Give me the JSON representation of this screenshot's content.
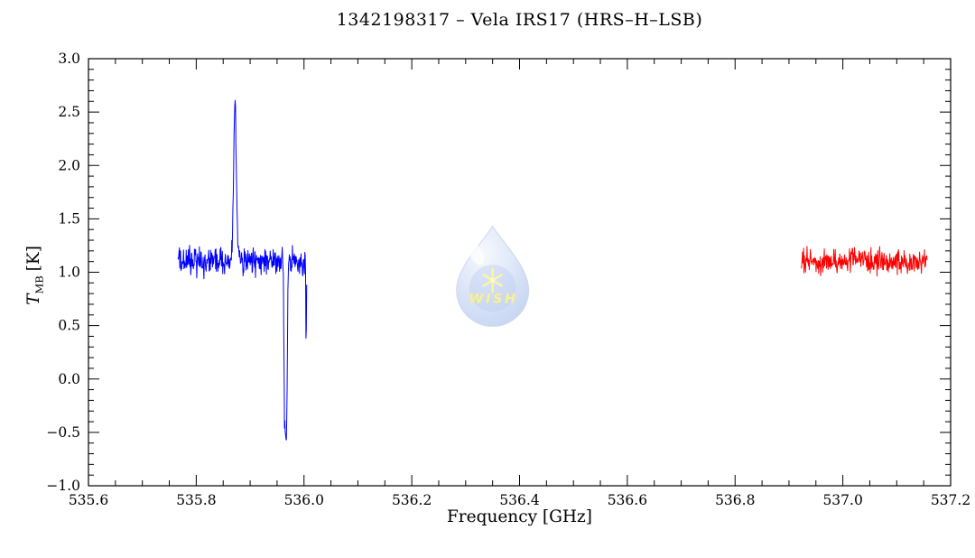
{
  "chart_data": {
    "type": "line",
    "title": "1342198317 – Vela IRS17 (HRS–H–LSB)",
    "xlabel": "Frequency [GHz]",
    "ylabel": "T_MB [K]",
    "ylabel_parts": {
      "symbol": "T",
      "subscript": "MB",
      "units": "[K]"
    },
    "xlim": [
      535.6,
      537.2
    ],
    "ylim": [
      -1.0,
      3.0
    ],
    "x_tick_values": [
      535.6,
      535.8,
      536.0,
      536.2,
      536.4,
      536.6,
      536.8,
      537.0,
      537.2
    ],
    "x_tick_labels": [
      "535.6",
      "535.8",
      "536.0",
      "536.2",
      "536.4",
      "536.6",
      "536.8",
      "537.0",
      "537.2"
    ],
    "y_tick_values": [
      -1.0,
      -0.5,
      0.0,
      0.5,
      1.0,
      1.5,
      2.0,
      2.5,
      3.0
    ],
    "y_tick_labels": [
      "−1.0",
      "−0.5",
      "0.0",
      "0.5",
      "1.0",
      "1.5",
      "2.0",
      "2.5",
      "3.0"
    ],
    "x_minor_step": 0.05,
    "y_minor_step": 0.1,
    "grid": false,
    "legend": null,
    "frame_color": "#000000",
    "series": [
      {
        "name": "spectrum-segment-blue",
        "color": "#0000ff",
        "x_start": 535.766,
        "x_end": 536.005,
        "baseline": 1.1,
        "noise_rms": 0.065,
        "seed": 12345,
        "features": [
          {
            "type": "emission",
            "center": 535.872,
            "peak_T": 2.53,
            "fwhm": 0.006
          },
          {
            "type": "absorption",
            "center": 535.966,
            "min_T": -0.58,
            "fwhm": 0.007
          },
          {
            "type": "absorption",
            "center": 536.004,
            "min_T": 0.45,
            "fwhm": 0.002
          }
        ]
      },
      {
        "name": "spectrum-segment-red",
        "color": "#ff0000",
        "x_start": 536.923,
        "x_end": 537.157,
        "baseline": 1.1,
        "noise_rms": 0.055,
        "seed": 777,
        "features": []
      }
    ],
    "watermark": {
      "label": "WISH",
      "x": 536.35,
      "y": 0.95,
      "drop_fill": "#a9c0ec",
      "star_color": "#f6ef4f",
      "text_color": "#f0e74a",
      "opacity": 0.52
    }
  }
}
